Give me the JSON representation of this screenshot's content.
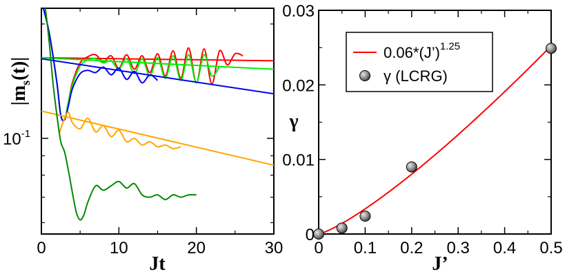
{
  "chart_data": [
    {
      "type": "line",
      "panel": "left",
      "xlabel": "Jt",
      "ylabel": "|m_s(t)|",
      "yscale": "log",
      "xlim": [
        0,
        30
      ],
      "ylim": [
        0.056,
        0.22
      ],
      "x_ticks": [
        0,
        10,
        20,
        30
      ],
      "x_tick_labels": [
        "0",
        "10",
        "20",
        "30"
      ],
      "y_ticks": [
        0.1
      ],
      "y_tick_labels": [
        "10",
        "-1"
      ],
      "series": [
        {
          "name": "red-fit",
          "color": "#ff0000",
          "style": "line",
          "x": [
            0,
            30
          ],
          "y": [
            0.163,
            0.16
          ]
        },
        {
          "name": "red-data",
          "color": "#ff0000",
          "style": "curve",
          "x": [
            0,
            1,
            2,
            2.5,
            3,
            3.5,
            4,
            5,
            6,
            7,
            8,
            9,
            10,
            11,
            12,
            13,
            14,
            15,
            16,
            17,
            18,
            19,
            20,
            21,
            22,
            23,
            24,
            25,
            26
          ],
          "y": [
            0.23,
            0.19,
            0.14,
            0.115,
            0.112,
            0.125,
            0.14,
            0.158,
            0.164,
            0.166,
            0.159,
            0.165,
            0.153,
            0.166,
            0.152,
            0.165,
            0.149,
            0.167,
            0.146,
            0.17,
            0.144,
            0.173,
            0.14,
            0.172,
            0.139,
            0.17,
            0.156,
            0.167,
            0.165
          ]
        },
        {
          "name": "green-fit",
          "color": "#00ee00",
          "style": "line",
          "x": [
            0,
            30
          ],
          "y": [
            0.163,
            0.152
          ]
        },
        {
          "name": "green-data",
          "color": "#00ee00",
          "style": "curve",
          "x": [
            0,
            1,
            2,
            2.5,
            3,
            3.5,
            4,
            5,
            6,
            7,
            8,
            9,
            10,
            11,
            12,
            13,
            14,
            15,
            16,
            17,
            18,
            19,
            20,
            21,
            22,
            23
          ],
          "y": [
            0.23,
            0.19,
            0.14,
            0.115,
            0.112,
            0.125,
            0.138,
            0.155,
            0.161,
            0.162,
            0.158,
            0.16,
            0.152,
            0.162,
            0.148,
            0.162,
            0.146,
            0.163,
            0.144,
            0.165,
            0.142,
            0.166,
            0.14,
            0.166,
            0.146,
            0.155
          ]
        },
        {
          "name": "blue-fit",
          "color": "#0000ee",
          "style": "line",
          "x": [
            0,
            30
          ],
          "y": [
            0.162,
            0.131
          ]
        },
        {
          "name": "blue-data",
          "color": "#0000ee",
          "style": "curve",
          "x": [
            0,
            1,
            2,
            2.5,
            3,
            3.5,
            4,
            5,
            6,
            7,
            8,
            9,
            10,
            11,
            12,
            13,
            14,
            15
          ],
          "y": [
            0.23,
            0.19,
            0.14,
            0.115,
            0.112,
            0.122,
            0.135,
            0.148,
            0.151,
            0.149,
            0.154,
            0.147,
            0.153,
            0.143,
            0.15,
            0.14,
            0.147,
            0.142
          ]
        },
        {
          "name": "orange-fit",
          "color": "#ffa500",
          "style": "line",
          "x": [
            0,
            30
          ],
          "y": [
            0.118,
            0.085
          ]
        },
        {
          "name": "orange-data",
          "color": "#ffa500",
          "style": "curve",
          "x": [
            2.3,
            3,
            3.5,
            4,
            5,
            6,
            7,
            8,
            9,
            10,
            11,
            12,
            13,
            14,
            15,
            16,
            17,
            18
          ],
          "y": [
            0.103,
            0.113,
            0.117,
            0.11,
            0.106,
            0.113,
            0.104,
            0.108,
            0.101,
            0.105,
            0.098,
            0.1,
            0.096,
            0.098,
            0.095,
            0.096,
            0.094,
            0.095
          ]
        },
        {
          "name": "darkgreen-data",
          "color": "#008800",
          "style": "curve",
          "x": [
            0,
            0.5,
            1,
            1.5,
            2,
            2.5,
            3,
            3.5,
            4,
            4.5,
            5,
            5.5,
            6,
            7,
            8,
            9,
            10,
            11,
            12,
            13,
            14,
            15,
            16,
            17,
            18,
            19,
            20
          ],
          "y": [
            0.25,
            0.22,
            0.18,
            0.14,
            0.115,
            0.098,
            0.092,
            0.082,
            0.072,
            0.064,
            0.061,
            0.063,
            0.068,
            0.075,
            0.073,
            0.075,
            0.077,
            0.074,
            0.076,
            0.071,
            0.07,
            0.071,
            0.069,
            0.071,
            0.07,
            0.071,
            0.071
          ]
        }
      ]
    },
    {
      "type": "scatter",
      "panel": "right",
      "xlabel": "J’",
      "ylabel": "γ",
      "xlim": [
        0,
        0.5
      ],
      "ylim": [
        0,
        0.03
      ],
      "x_ticks": [
        0,
        0.1,
        0.2,
        0.3,
        0.4,
        0.5
      ],
      "x_tick_labels": [
        "0",
        "0.1",
        "0.2",
        "0.3",
        "0.4",
        "0.5"
      ],
      "y_ticks": [
        0,
        0.01,
        0.02,
        0.03
      ],
      "y_tick_labels": [
        "0",
        "0.01",
        "0.02",
        "0.03"
      ],
      "fit": {
        "name": "0.06*(J’)",
        "exponent_label": "1.25",
        "color": "#ff0000",
        "coef": 0.06,
        "exponent": 1.25
      },
      "points": {
        "name": "γ (LCRG)",
        "x": [
          0,
          0.05,
          0.1,
          0.2,
          0.5
        ],
        "y": [
          0,
          0.0008,
          0.0024,
          0.009,
          0.0249
        ]
      },
      "legend_position": "top-left"
    }
  ]
}
